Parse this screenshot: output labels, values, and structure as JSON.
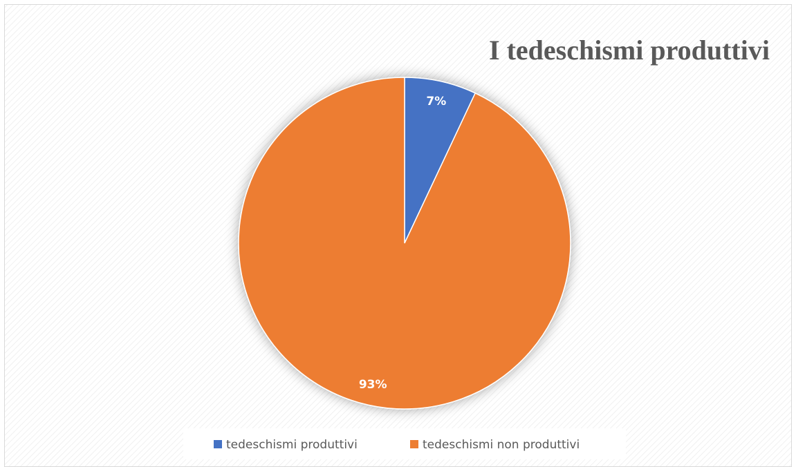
{
  "chart_data": {
    "type": "pie",
    "title": "I tedeschismi produttivi",
    "categories": [
      "tedeschismi produttivi",
      "tedeschismi non produttivi"
    ],
    "values": [
      7,
      93
    ],
    "value_labels": [
      "7%",
      "93%"
    ],
    "colors": [
      "#4472c4",
      "#ed7d31"
    ],
    "legend": "bottom"
  }
}
